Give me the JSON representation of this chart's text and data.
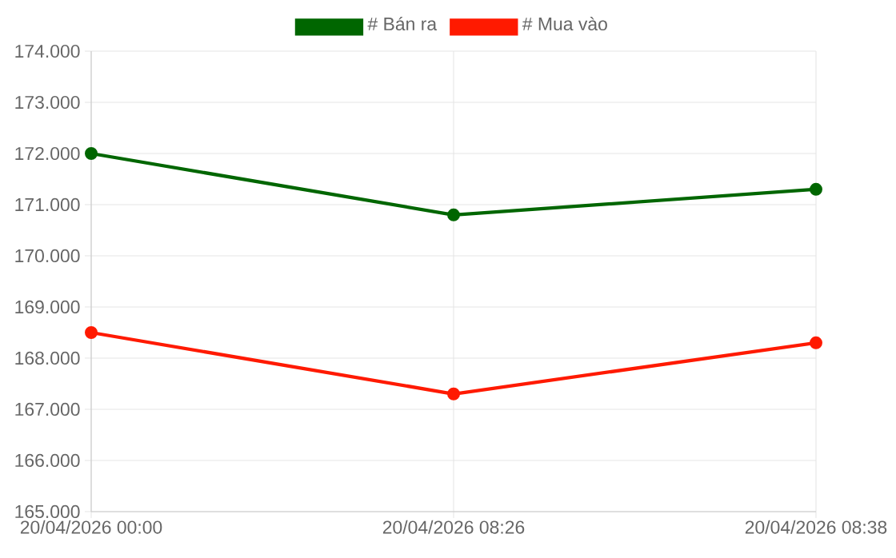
{
  "chart_data": {
    "type": "line",
    "categories": [
      "20/04/2026 00:00",
      "20/04/2026 08:26",
      "20/04/2026 08:38"
    ],
    "series": [
      {
        "name": "# Bán ra",
        "color": "#006600",
        "values": [
          172000,
          170800,
          171300
        ]
      },
      {
        "name": "# Mua vào",
        "color": "#ff1a00",
        "values": [
          168500,
          167300,
          168300
        ]
      }
    ],
    "ylim": [
      165000,
      174000
    ],
    "yticks": [
      {
        "value": 165000,
        "label": "165.000"
      },
      {
        "value": 166000,
        "label": "166.000"
      },
      {
        "value": 167000,
        "label": "167.000"
      },
      {
        "value": 168000,
        "label": "168.000"
      },
      {
        "value": 169000,
        "label": "169.000"
      },
      {
        "value": 170000,
        "label": "170.000"
      },
      {
        "value": 171000,
        "label": "171.000"
      },
      {
        "value": 172000,
        "label": "172.000"
      },
      {
        "value": 173000,
        "label": "173.000"
      },
      {
        "value": 174000,
        "label": "174.000"
      }
    ],
    "grid": true,
    "legend": "top",
    "marker": "circle",
    "line_style": "solid"
  }
}
